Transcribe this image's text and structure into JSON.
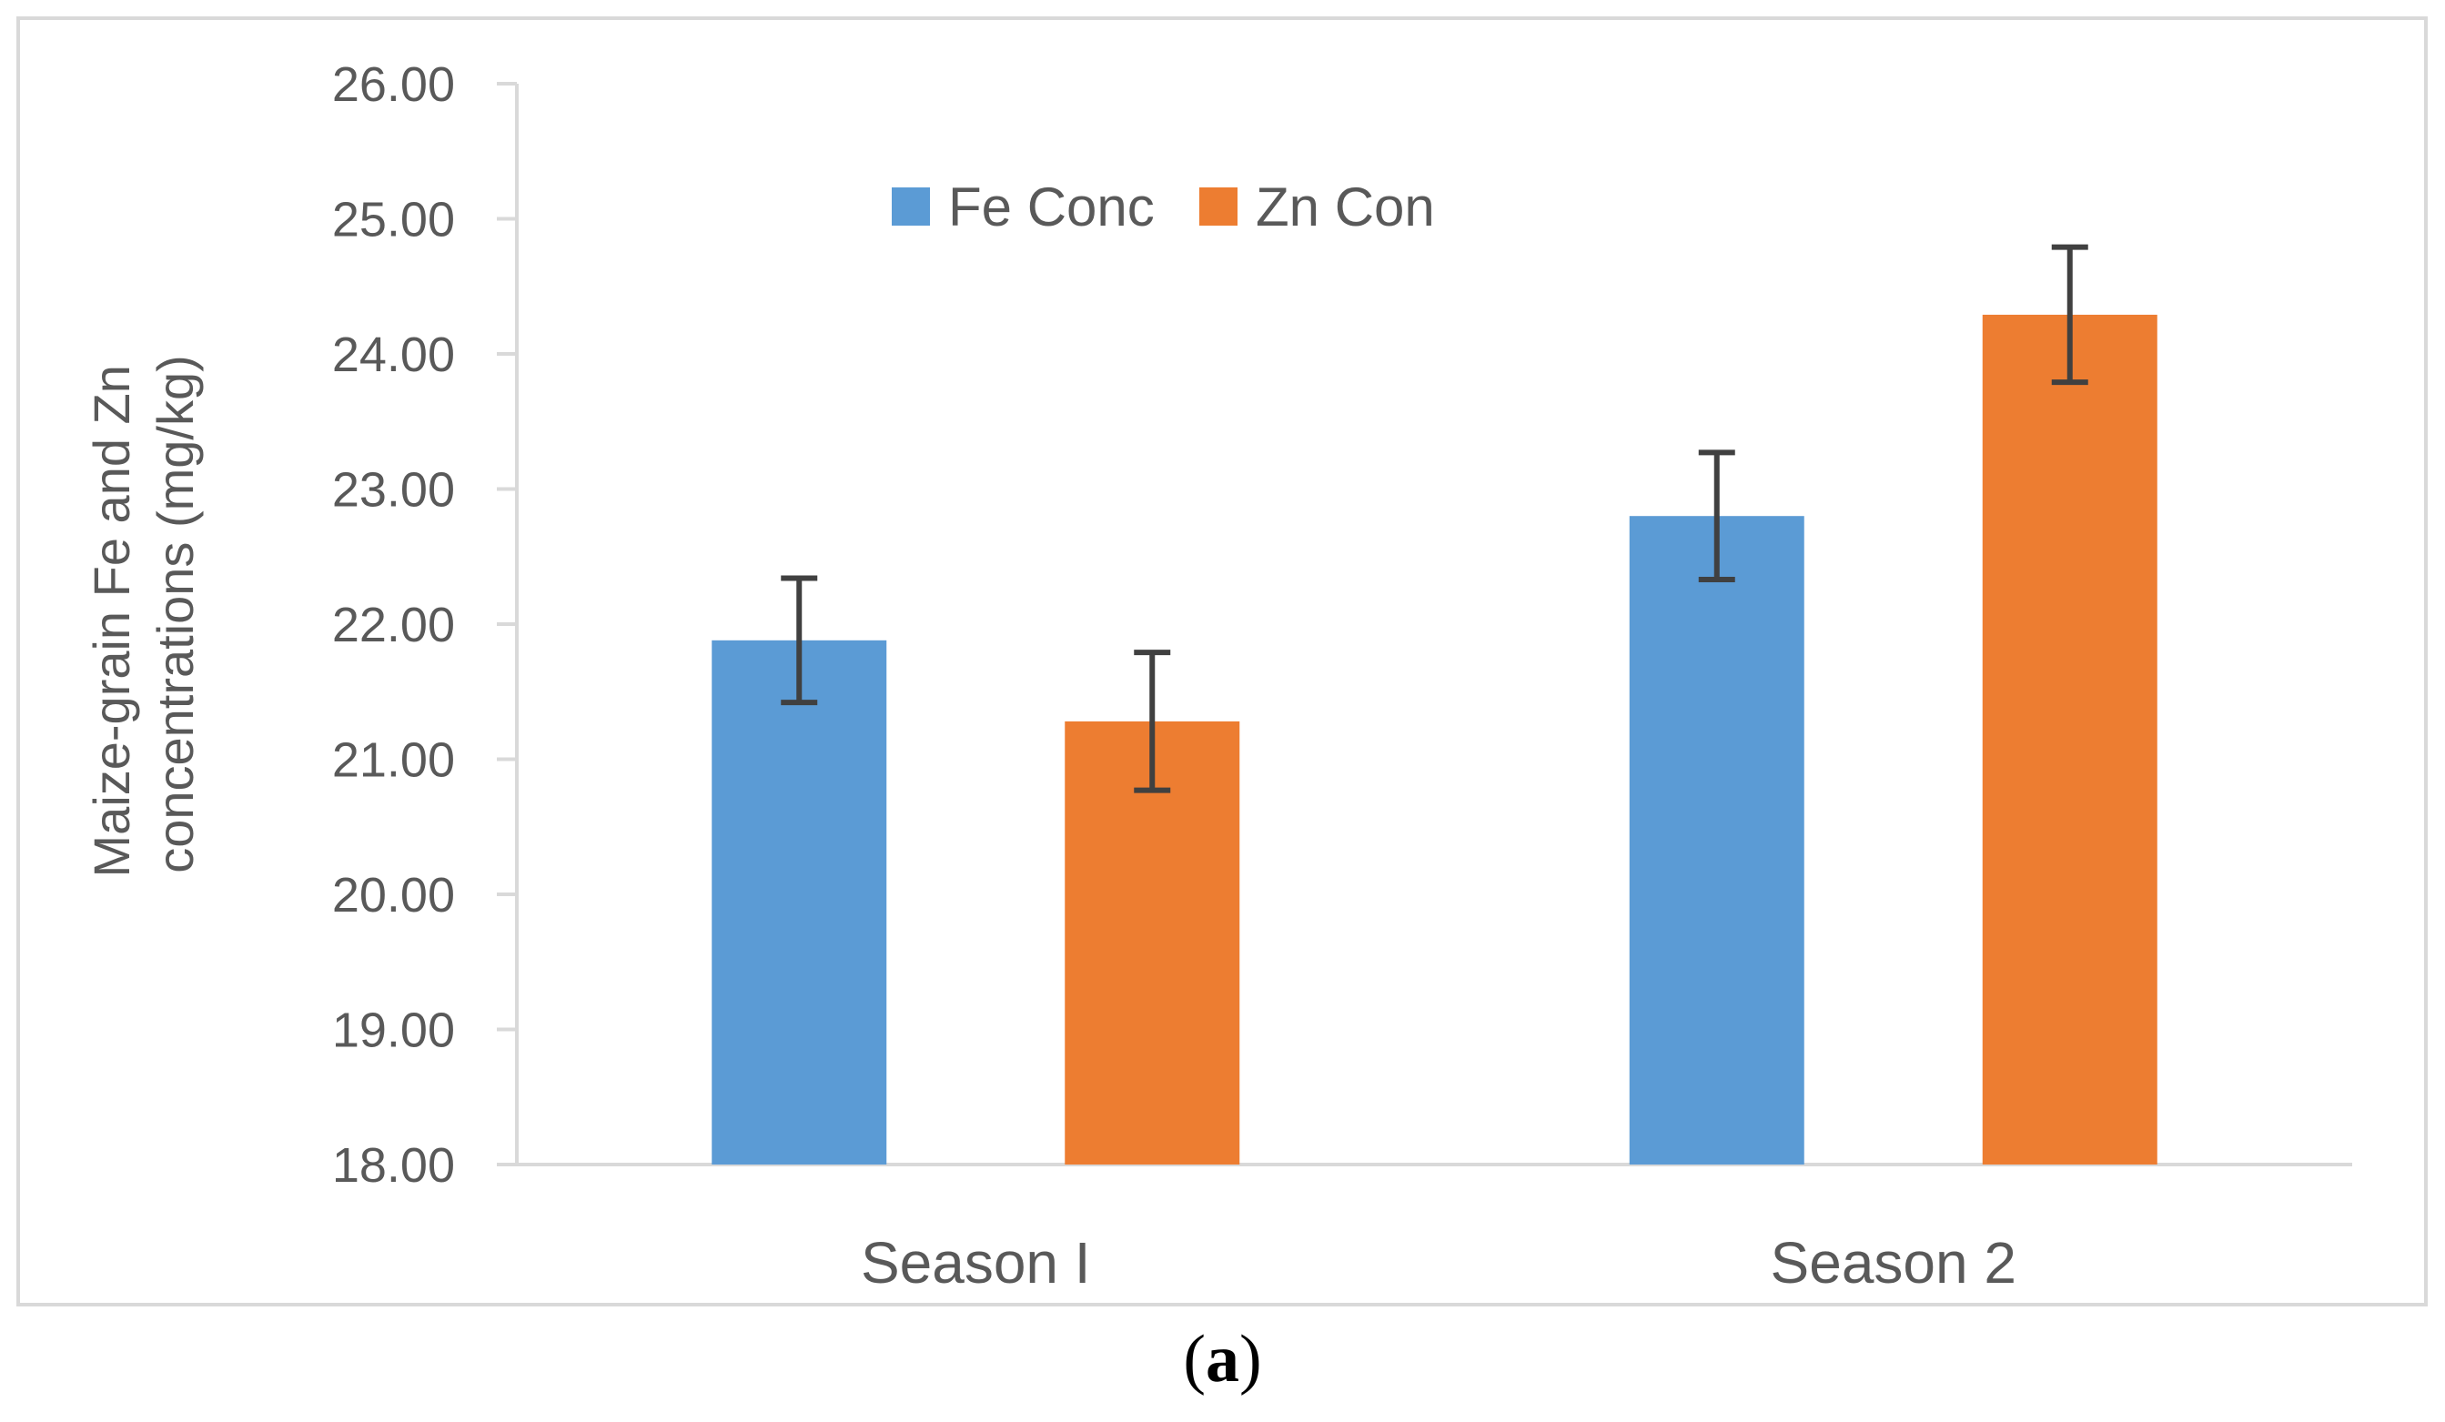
{
  "chart_data": {
    "type": "bar",
    "categories": [
      "Season I",
      "Season 2"
    ],
    "series": [
      {
        "name": "Fe Conc",
        "color": "#5b9bd5",
        "values": [
          21.88,
          22.8
        ],
        "errors": [
          0.46,
          0.47
        ]
      },
      {
        "name": "Zn Con",
        "color": "#ed7d31",
        "values": [
          21.28,
          24.29
        ],
        "errors": [
          0.51,
          0.5
        ]
      }
    ],
    "ylabel_lines": [
      "Maize-grain Fe and Zn",
      "concentrations (mg/kg)"
    ],
    "xlabel": "",
    "ylim": [
      18.0,
      26.0
    ],
    "yticks": [
      "18.00",
      "19.00",
      "20.00",
      "21.00",
      "22.00",
      "23.00",
      "24.00",
      "25.00",
      "26.00"
    ],
    "legend_position": "top-center",
    "error_bar_color": "#404040",
    "axis_color": "#d9d9d9"
  },
  "caption": {
    "open": "(",
    "letter": "a",
    "close": ")"
  }
}
